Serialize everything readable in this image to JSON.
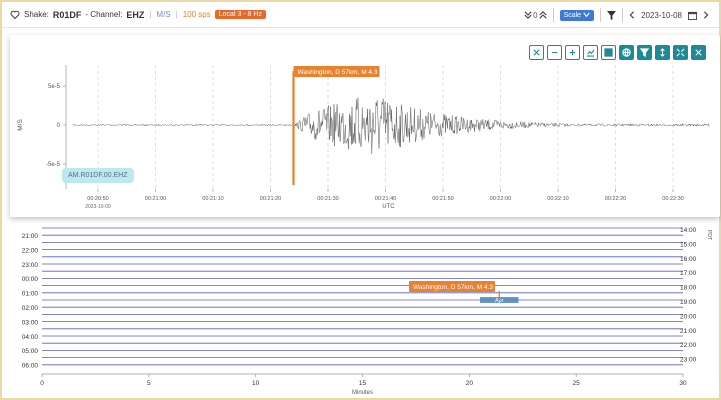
{
  "header": {
    "shake_prefix": "Shake:",
    "station": "R01DF",
    "channel_sep": " - Channel:",
    "channel": "EHZ",
    "unit": "M/S",
    "sps": "100 sps",
    "filter": "Local 3 - 8 Hz",
    "nav_counter": "0",
    "scale_label": "Scale",
    "date": "2023-10-08",
    "colors": {
      "unit": "#7c8bd1",
      "sps": "#d9823b",
      "filter_bg": "#e8692c",
      "scale_bg": "#3e79d8",
      "toolbar": "#1f8a95"
    }
  },
  "toolbar_icons": [
    "compress-icon",
    "zoom-out-icon",
    "zoom-in-icon",
    "chart-icon",
    "grid-icon",
    "globe-icon",
    "filter-icon",
    "vertical-scale-icon",
    "expand-icon",
    "close-icon"
  ],
  "chart_data": [
    {
      "type": "line",
      "ylabel": "M/S",
      "xlabel": "UTC",
      "yticks": [
        "5e-5",
        "0",
        "-5e-5"
      ],
      "ylim": [
        -7e-05,
        7.5e-05
      ],
      "xticks": [
        "00:20:50",
        "00:21:00",
        "00:21:10",
        "00:21:20",
        "00:21:30",
        "00:21:40",
        "00:21:50",
        "00:22:00",
        "00:22:10",
        "00:22:20",
        "00:22:30"
      ],
      "x_sublabel": "2023-10-09",
      "event": {
        "label": "Washington, D 57km, M 4.3",
        "time": "00:21:24",
        "color": "#e8822f"
      },
      "station_label": "AM.R01DF.00.EHZ",
      "grid": "vertical",
      "series_color": "#555555"
    },
    {
      "type": "line",
      "xlabel": "Minutes",
      "xticks": [
        0,
        5,
        10,
        15,
        20,
        25,
        30
      ],
      "xlim": [
        0,
        30
      ],
      "left_hours": [
        "21:00",
        "22:00",
        "23:00",
        "00:00",
        "01:00",
        "02:00",
        "03:00",
        "04:00",
        "05:00",
        "06:00"
      ],
      "right_hours": [
        "14:00",
        "15:00",
        "16:00",
        "17:00",
        "18:00",
        "19:00",
        "20:00",
        "21:00",
        "22:00",
        "23:00"
      ],
      "right_axis_label": "PDT",
      "event": {
        "label": "Washington, D 57km, M 4.3",
        "minute": 21.4,
        "trace_row": 10,
        "color": "#e8822f"
      },
      "selection": {
        "label": "Apr",
        "start_minute": 20.5,
        "end_minute": 22.3
      },
      "line_color": "#5a5fc4"
    }
  ]
}
